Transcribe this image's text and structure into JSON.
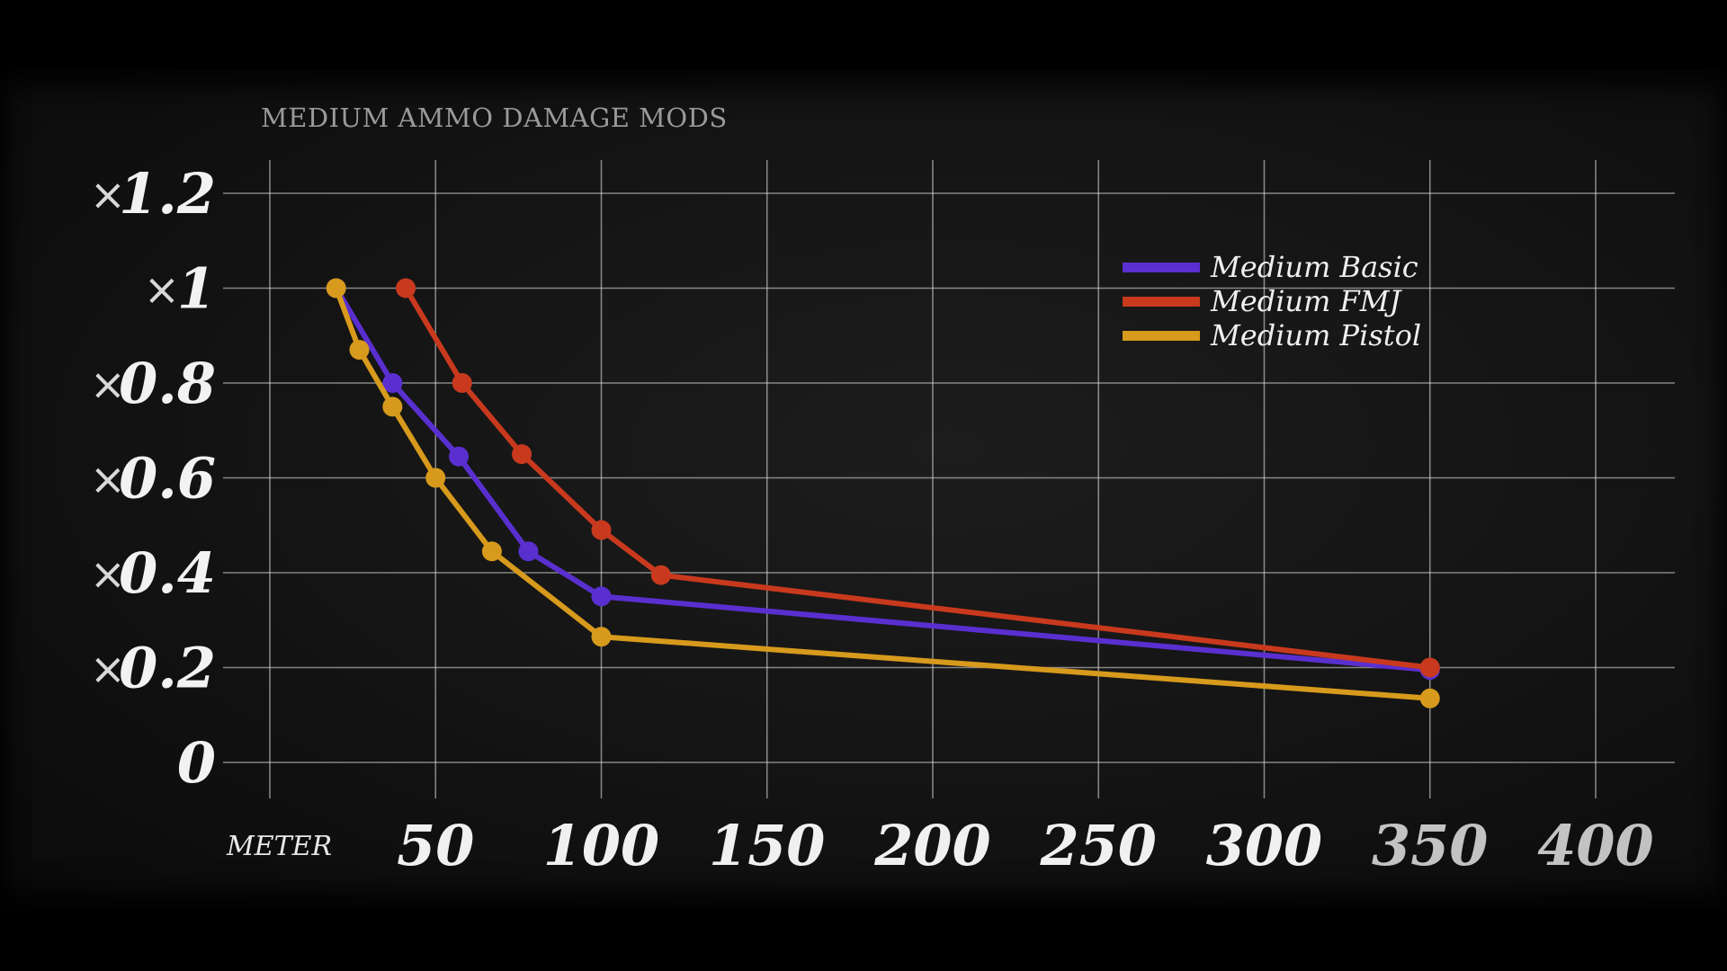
{
  "chart_data": {
    "type": "line",
    "title": "MEDIUM  AMMO DAMAGE MODS",
    "xlabel": "METER",
    "ylabel": "",
    "xlim": [
      0,
      400
    ],
    "ylim": [
      0,
      1.2
    ],
    "x_ticks": [
      {
        "value": 50,
        "label": "50"
      },
      {
        "value": 100,
        "label": "100"
      },
      {
        "value": 150,
        "label": "150"
      },
      {
        "value": 200,
        "label": "200"
      },
      {
        "value": 250,
        "label": "250"
      },
      {
        "value": 300,
        "label": "300"
      },
      {
        "value": 350,
        "label": "350"
      },
      {
        "value": 400,
        "label": "400"
      }
    ],
    "y_ticks": [
      {
        "value": 0,
        "prefix": "",
        "label": "0"
      },
      {
        "value": 0.2,
        "prefix": "×",
        "label": "0.2"
      },
      {
        "value": 0.4,
        "prefix": "×",
        "label": "0.4"
      },
      {
        "value": 0.6,
        "prefix": "×",
        "label": "0.6"
      },
      {
        "value": 0.8,
        "prefix": "×",
        "label": "0.8"
      },
      {
        "value": 1.0,
        "prefix": "×",
        "label": "1"
      },
      {
        "value": 1.2,
        "prefix": "×",
        "label": "1.2"
      }
    ],
    "grid": true,
    "legend_position": "top-right",
    "series": [
      {
        "name": "Medium Basic",
        "color": "#5a2fd0",
        "points": [
          [
            20,
            1.0
          ],
          [
            37,
            0.8
          ],
          [
            57,
            0.645
          ],
          [
            78,
            0.445
          ],
          [
            100,
            0.35
          ],
          [
            350,
            0.195
          ]
        ]
      },
      {
        "name": "Medium FMJ",
        "color": "#c8391e",
        "points": [
          [
            41,
            1.0
          ],
          [
            58,
            0.8
          ],
          [
            76,
            0.65
          ],
          [
            100,
            0.49
          ],
          [
            118,
            0.395
          ],
          [
            350,
            0.2
          ]
        ]
      },
      {
        "name": "Medium Pistol",
        "color": "#d79a1c",
        "points": [
          [
            20,
            1.0
          ],
          [
            27,
            0.87
          ],
          [
            37,
            0.75
          ],
          [
            50,
            0.6
          ],
          [
            67,
            0.445
          ],
          [
            100,
            0.265
          ],
          [
            350,
            0.135
          ]
        ]
      }
    ]
  }
}
